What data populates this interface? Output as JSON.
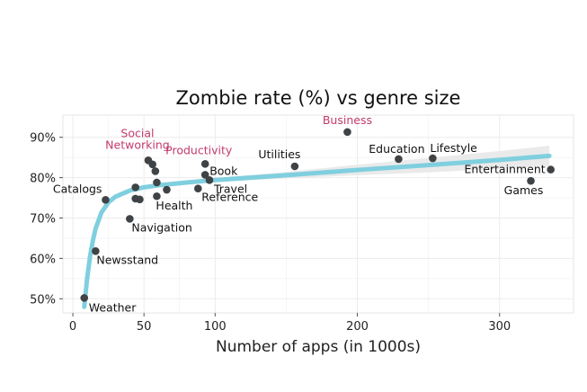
{
  "chart_data": {
    "type": "scatter",
    "title": "Zombie rate (%) vs genre size",
    "xlabel": "Number of apps (in 1000s)",
    "ylabel": "",
    "xlim": [
      -7,
      352
    ],
    "ylim": [
      46.5,
      95.5
    ],
    "x_ticks": [
      0,
      50,
      100,
      200,
      300
    ],
    "x_tick_labels": [
      "0",
      "50",
      "100",
      "200",
      "300"
    ],
    "y_ticks": [
      50,
      60,
      70,
      80,
      90
    ],
    "y_tick_labels": [
      "50%",
      "60%",
      "70%",
      "80%",
      "90%"
    ],
    "grid": true,
    "legend": "none",
    "colors": {
      "points": "#3f4346",
      "trend": "#7fcfdf",
      "band": "#e8e8e8",
      "highlight": "#c23b6e",
      "grid": "#f0f0f0",
      "panel_border": "#e6e6e6"
    },
    "points": [
      {
        "label": "Weather",
        "x": 8,
        "y": 50.2,
        "highlight": false
      },
      {
        "label": "Newsstand",
        "x": 16,
        "y": 61.8,
        "highlight": false
      },
      {
        "label": "Catalogs",
        "x": 23,
        "y": 74.5,
        "highlight": false
      },
      {
        "label": "Navigation",
        "x": 40,
        "y": 69.8,
        "highlight": false
      },
      {
        "label": "",
        "x": 44,
        "y": 77.6,
        "highlight": false
      },
      {
        "label": "",
        "x": 44,
        "y": 74.8,
        "highlight": false
      },
      {
        "label": "",
        "x": 47,
        "y": 74.6,
        "highlight": false
      },
      {
        "label": "Social Networking",
        "x": 53,
        "y": 84.3,
        "highlight": true
      },
      {
        "label": "",
        "x": 56,
        "y": 83.3,
        "highlight": false
      },
      {
        "label": "",
        "x": 58,
        "y": 81.6,
        "highlight": false
      },
      {
        "label": "",
        "x": 59,
        "y": 78.8,
        "highlight": false
      },
      {
        "label": "Health",
        "x": 59,
        "y": 75.4,
        "highlight": false
      },
      {
        "label": "",
        "x": 66,
        "y": 77.0,
        "highlight": false
      },
      {
        "label": "Reference",
        "x": 88,
        "y": 77.3,
        "highlight": false
      },
      {
        "label": "Productivity",
        "x": 93,
        "y": 83.4,
        "highlight": true
      },
      {
        "label": "Book",
        "x": 93,
        "y": 80.7,
        "highlight": false
      },
      {
        "label": "Travel",
        "x": 96,
        "y": 79.4,
        "highlight": false
      },
      {
        "label": "Utilities",
        "x": 156,
        "y": 82.8,
        "highlight": false
      },
      {
        "label": "Business",
        "x": 193,
        "y": 91.3,
        "highlight": true
      },
      {
        "label": "Education",
        "x": 229,
        "y": 84.6,
        "highlight": false
      },
      {
        "label": "Lifestyle",
        "x": 253,
        "y": 84.8,
        "highlight": false
      },
      {
        "label": "Games",
        "x": 322,
        "y": 79.2,
        "highlight": false
      },
      {
        "label": "Entertainment",
        "x": 336,
        "y": 82.0,
        "highlight": false
      }
    ],
    "trend": {
      "x": [
        8,
        10,
        12,
        14,
        16,
        20,
        25,
        30,
        40,
        50,
        60,
        80,
        100,
        150,
        200,
        250,
        300,
        335
      ],
      "y": [
        48.0,
        55.0,
        60.3,
        64.3,
        67.4,
        71.3,
        73.9,
        75.3,
        76.8,
        77.6,
        78.1,
        78.8,
        79.4,
        80.6,
        81.9,
        83.1,
        84.4,
        85.4
      ]
    },
    "band": {
      "x": [
        100,
        150,
        200,
        250,
        300,
        335
      ],
      "upper": [
        79.9,
        81.4,
        83.2,
        84.9,
        86.6,
        87.9
      ],
      "lower": [
        78.9,
        79.8,
        80.6,
        81.3,
        82.2,
        82.9
      ]
    }
  }
}
